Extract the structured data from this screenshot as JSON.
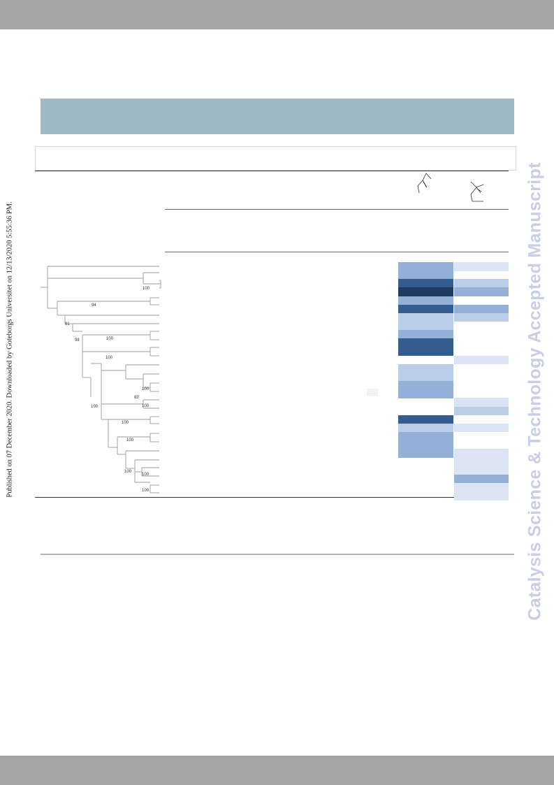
{
  "side_note": "Published on 07 December 2020. Downloaded by Goteborgs Universitet on 12/13/2020 5:55:36 PM.",
  "watermark": "Catalysis Science & Technology Accepted Manuscript",
  "colors": {
    "header_band": "#9eb8c6",
    "bars": "#a6a6a6",
    "watermark": "#c9cde6",
    "heat_darkest": "#1f3b5e",
    "heat_dark": "#335c8f",
    "heat_mid": "#94b0d6",
    "heat_light": "#b9cde6",
    "heat_pale": "#dae4f2"
  },
  "heatmap": {
    "type": "heatmap",
    "columns": [
      "substrate-1",
      "substrate-2"
    ],
    "rows": 28,
    "levels": [
      "none",
      "pale",
      "light",
      "mid",
      "dark",
      "darkest"
    ],
    "values": [
      [
        "mid",
        "pale"
      ],
      [
        "mid",
        "none"
      ],
      [
        "dark",
        "light"
      ],
      [
        "darkest",
        "mid"
      ],
      [
        "mid",
        "none"
      ],
      [
        "dark",
        "mid"
      ],
      [
        "light",
        "light"
      ],
      [
        "light",
        "none"
      ],
      [
        "mid",
        "none"
      ],
      [
        "dark",
        "none"
      ],
      [
        "dark",
        "none"
      ],
      [
        "none",
        "pale"
      ],
      [
        "light",
        "none"
      ],
      [
        "light",
        "none"
      ],
      [
        "mid",
        "none"
      ],
      [
        "mid",
        "none"
      ],
      [
        "none",
        "pale"
      ],
      [
        "none",
        "light"
      ],
      [
        "dark",
        "none"
      ],
      [
        "light",
        "pale"
      ],
      [
        "mid",
        "none"
      ],
      [
        "mid",
        "none"
      ],
      [
        "mid",
        "pale"
      ],
      [
        "none",
        "pale"
      ],
      [
        "none",
        "pale"
      ],
      [
        "none",
        "mid"
      ],
      [
        "none",
        "pale"
      ],
      [
        "none",
        "pale"
      ]
    ]
  },
  "tree": {
    "bootstrap_labels": [
      "100",
      "94",
      "81",
      "100",
      "98",
      "100",
      "100",
      "83",
      "100",
      "100",
      "100",
      "100",
      "100",
      "100",
      "100"
    ]
  }
}
